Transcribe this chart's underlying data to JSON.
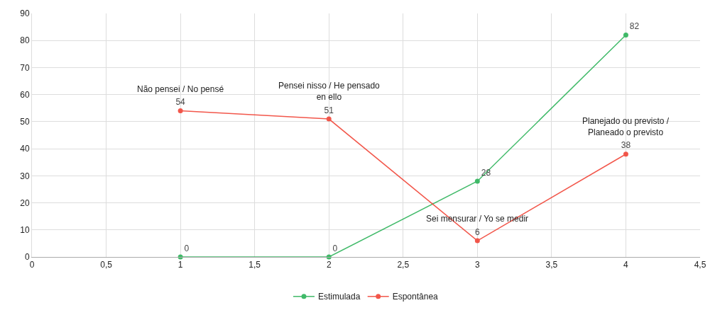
{
  "chart_data": {
    "type": "line",
    "x": [
      1,
      2,
      3,
      4
    ],
    "series": [
      {
        "name": "Estimulada",
        "color": "#1fae4f",
        "values": [
          0,
          0,
          28,
          82
        ]
      },
      {
        "name": "Espontânea",
        "color": "#f0392b",
        "values": [
          54,
          51,
          6,
          38
        ]
      }
    ],
    "xlim": [
      0,
      4.5
    ],
    "xticks": [
      0,
      {
        "value": 0.5,
        "label": "0,5"
      },
      1,
      {
        "value": 1.5,
        "label": "1,5"
      },
      2,
      {
        "value": 2.5,
        "label": "2,5"
      },
      3,
      {
        "value": 3.5,
        "label": "3,5"
      },
      4,
      {
        "value": 4.5,
        "label": "4,5"
      }
    ],
    "ylim": [
      0,
      90
    ],
    "yticks": [
      0,
      10,
      20,
      30,
      40,
      50,
      60,
      70,
      80,
      90
    ],
    "grid": true,
    "legend": "bottom",
    "marker": "circle",
    "line_style": "solid",
    "data_labels": true,
    "annotations": [
      {
        "text": "Não pensei / No pensé",
        "x": 1,
        "y": 54
      },
      {
        "text": "Pensei nisso / He pensado en ello",
        "x": 2,
        "y": 51
      },
      {
        "text": "Sei mensurar / Yo se medir",
        "x": 3,
        "y": 6
      },
      {
        "text": "Planejado ou previsto / Planeado o previsto",
        "x": 4,
        "y": 38
      }
    ]
  }
}
